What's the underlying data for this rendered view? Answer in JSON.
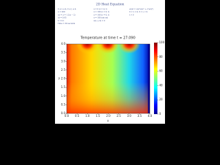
{
  "header": {
    "title": "2D Heat Equation",
    "equations": [
      [
        "0 ≤ x ≤ 4, 0 ≤ y ≤ 4",
        "α = 200",
        "ux = u = 1.2(x − 2)",
        "Δt = 0.05",
        "h = 0.1",
        "Time = 30 seconds"
      ],
      [
        "u = 0 (x = 4, t)",
        "u = 100 (x = 0, t)",
        "u = 100 (y = 0, t)",
        "u = 100 (sin πx)",
        "u(x, y, 0) = 0"
      ],
      [
        "∂u/∂t = α(∂²u/∂x² + ∂²u/∂y²)",
        "0 < x < 4, 0 < y < 4",
        "t > 0"
      ]
    ]
  },
  "chart_data": {
    "type": "heatmap",
    "title": "Temperature at time t = 27.090",
    "xlabel": "x",
    "ylabel": "y",
    "xlim": [
      0,
      4
    ],
    "ylim": [
      0,
      4
    ],
    "xticks": [
      {
        "value": 0,
        "label": "0.0"
      },
      {
        "value": 0.5,
        "label": "0.5"
      },
      {
        "value": 1,
        "label": "1.0"
      },
      {
        "value": 1.5,
        "label": "1.5"
      },
      {
        "value": 2,
        "label": "2.0"
      },
      {
        "value": 2.5,
        "label": "2.5"
      },
      {
        "value": 3,
        "label": "3.0"
      },
      {
        "value": 3.5,
        "label": "3.5"
      },
      {
        "value": 4,
        "label": "4.0"
      }
    ],
    "yticks": [
      {
        "value": 0,
        "label": "0.0"
      },
      {
        "value": 0.5,
        "label": "0.5"
      },
      {
        "value": 1,
        "label": "1.0"
      },
      {
        "value": 1.5,
        "label": "1.5"
      },
      {
        "value": 2,
        "label": "2.0"
      },
      {
        "value": 2.5,
        "label": "2.5"
      },
      {
        "value": 3,
        "label": "3.0"
      },
      {
        "value": 3.5,
        "label": "3.5"
      },
      {
        "value": 4,
        "label": "4.0"
      }
    ],
    "clim": [
      0,
      100
    ],
    "cticks": [
      0,
      20,
      40,
      60,
      80,
      100
    ]
  }
}
